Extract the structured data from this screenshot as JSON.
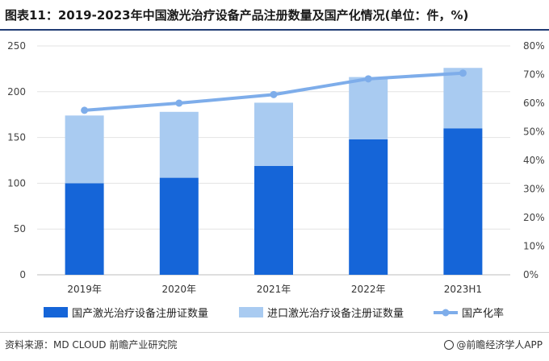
{
  "chart_data": {
    "type": "bar",
    "title": "图表11：2019-2023年中国激光治疗设备产品注册数量及国产化情况(单位：件，%)",
    "categories": [
      "2019年",
      "2020年",
      "2021年",
      "2022年",
      "2023H1"
    ],
    "stacked": true,
    "series": [
      {
        "name": "国产激光治疗设备注册证数量",
        "kind": "bar",
        "axis": "left",
        "color": "#1565d8",
        "values": [
          100,
          106,
          119,
          148,
          160
        ]
      },
      {
        "name": "进口激光治疗设备注册证数量",
        "kind": "bar",
        "axis": "left",
        "color": "#a9cbf1",
        "values": [
          74,
          72,
          69,
          68,
          66
        ]
      },
      {
        "name": "国产化率",
        "kind": "line",
        "axis": "right",
        "color": "#7eadea",
        "values": [
          57.5,
          60,
          63,
          68.5,
          70.5
        ]
      }
    ],
    "y_left": {
      "min": 0,
      "max": 250,
      "ticks": [
        "0",
        "50",
        "100",
        "150",
        "200",
        "250"
      ]
    },
    "y_right": {
      "min": 0,
      "max": 80,
      "ticks": [
        "0%",
        "10%",
        "20%",
        "30%",
        "40%",
        "50%",
        "60%",
        "70%",
        "80%"
      ]
    },
    "grid": true,
    "legend_position": "bottom"
  },
  "footer": {
    "source": "资料来源：MD CLOUD 前瞻产业研究院",
    "brand": "@前瞻经济学人APP"
  }
}
